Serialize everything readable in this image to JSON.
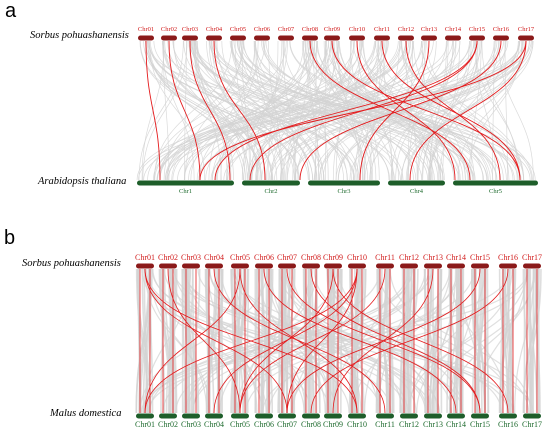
{
  "panel_a": {
    "label": "a",
    "top_species": "Sorbus pohuashanensis",
    "bottom_species": "Arabidopsis thaliana",
    "top_chromosomes": [
      "Chr01",
      "Chr02",
      "Chr03",
      "Chr04",
      "Chr05",
      "Chr06",
      "Chr07",
      "Chr08",
      "Chr09",
      "Chr10",
      "Chr11",
      "Chr12",
      "Chr13",
      "Chr14",
      "Chr15",
      "Chr16",
      "Chr17"
    ],
    "bottom_chromosomes": [
      "Chr1",
      "Chr2",
      "Chr3",
      "Chr4",
      "Chr5"
    ]
  },
  "panel_b": {
    "label": "b",
    "top_species": "Sorbus pohuashanensis",
    "bottom_species": "Malus domestica",
    "top_chromosomes": [
      "Chr01",
      "Chr02",
      "Chr03",
      "Chr04",
      "Chr05",
      "Chr06",
      "Chr07",
      "Chr08",
      "Chr09",
      "Chr10",
      "Chr11",
      "Chr12",
      "Chr13",
      "Chr14",
      "Chr15",
      "Chr16",
      "Chr17"
    ],
    "bottom_chromosomes": [
      "Chr01",
      "Chr02",
      "Chr03",
      "Chr04",
      "Chr05",
      "Chr06",
      "Chr07",
      "Chr08",
      "Chr09",
      "Chr10",
      "Chr11",
      "Chr12",
      "Chr13",
      "Chr14",
      "Chr15",
      "Chr16",
      "Chr17"
    ]
  },
  "colors": {
    "top_chromosome": "#8b1a1a",
    "bottom_chromosome": "#1e5e2a",
    "background_link": "#d3d3d3",
    "highlight_link": "#e41a1c"
  }
}
